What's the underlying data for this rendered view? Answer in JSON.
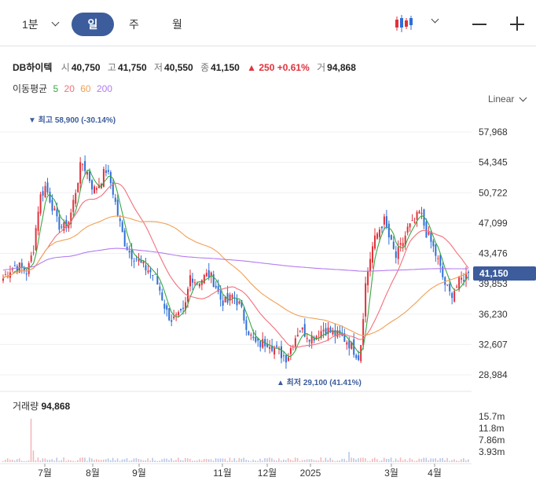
{
  "toolbar": {
    "interval_minute": "1분",
    "interval_day": "일",
    "interval_week": "주",
    "interval_month": "월",
    "chart_type_icon": "candlestick-icon",
    "zoom_out_icon": "minus-icon",
    "zoom_in_icon": "plus-icon"
  },
  "stock": {
    "name": "DB하이텍",
    "open_label": "시",
    "open": "40,750",
    "high_label": "고",
    "high": "41,750",
    "low_label": "저",
    "low": "40,550",
    "close_label": "종",
    "close": "41,150",
    "change": "▲ 250 +0.61%",
    "volume_label": "거",
    "volume": "94,868"
  },
  "moving_average": {
    "label": "이동평균",
    "p5": "5",
    "p20": "20",
    "p60": "60",
    "p200": "200"
  },
  "scale_mode": "Linear",
  "annotations": {
    "high_marker": "▼ 최고 58,900 (-30.14%)",
    "low_marker": "▲ 최저 29,100 (41.41%)"
  },
  "current_price_tag": "41,150",
  "volume_panel": {
    "label": "거래량",
    "value": "94,868"
  },
  "colors": {
    "up": "#e0323c",
    "down": "#2f6fd6",
    "ma5": "#3aa845",
    "ma20": "#f2707a",
    "ma60": "#f2a055",
    "ma200": "#b37bf0",
    "accent": "#3c5c9c"
  },
  "chart_data": {
    "type": "candlestick",
    "y_ticks": [
      "57,968",
      "54,345",
      "50,722",
      "47,099",
      "43,476",
      "39,853",
      "36,230",
      "32,607",
      "28,984"
    ],
    "y_tick_values": [
      57968,
      54345,
      50722,
      47099,
      43476,
      39853,
      36230,
      32607,
      28984
    ],
    "x_ticks": [
      "7월",
      "8월",
      "9월",
      "11월",
      "12월",
      "2025",
      "3월",
      "4월"
    ],
    "volume_ticks": [
      "15.7m",
      "11.8m",
      "7.86m",
      "3.93m"
    ],
    "volume_tick_values": [
      15.7,
      11.8,
      7.86,
      3.93
    ],
    "series_waypoints": [
      40500,
      41500,
      42000,
      41800,
      41200,
      44000,
      50000,
      51500,
      49500,
      47000,
      46500,
      47500,
      51000,
      54500,
      53000,
      51000,
      52000,
      53500,
      51500,
      48000,
      45000,
      43500,
      43000,
      42000,
      41500,
      40800,
      39000,
      36500,
      35500,
      35800,
      36500,
      41000,
      40000,
      40500,
      41000,
      40000,
      38000,
      37500,
      38500,
      37500,
      35500,
      33500,
      32500,
      32800,
      33000,
      32000,
      31500,
      31000,
      33000,
      34500,
      34000,
      33500,
      33800,
      34500,
      34200,
      33800,
      33500,
      33000,
      32000,
      31000,
      40000,
      44000,
      46000,
      47500,
      45000,
      43000,
      44500,
      46500,
      47000,
      48500,
      46000,
      44500,
      42500,
      40000,
      38500,
      39500,
      40500,
      41150
    ],
    "ma_series": [
      {
        "period": 5,
        "color": "#3aa845"
      },
      {
        "period": 20,
        "color": "#f2707a"
      },
      {
        "period": 60,
        "color": "#f2a055"
      },
      {
        "period": 200,
        "color": "#b37bf0"
      }
    ]
  }
}
